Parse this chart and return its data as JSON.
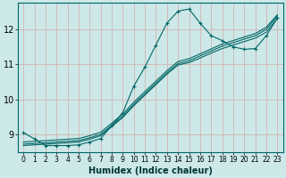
{
  "title": "",
  "xlabel": "Humidex (Indice chaleur)",
  "ylabel": "",
  "bg_color": "#cce8e8",
  "grid_color": "#b8d4d4",
  "line_color": "#006666",
  "xlim": [
    -0.5,
    23.5
  ],
  "ylim": [
    8.5,
    12.75
  ],
  "xticks": [
    0,
    1,
    2,
    3,
    4,
    5,
    6,
    7,
    8,
    9,
    10,
    11,
    12,
    13,
    14,
    15,
    16,
    17,
    18,
    19,
    20,
    21,
    22,
    23
  ],
  "yticks": [
    9,
    10,
    11,
    12
  ],
  "peaked": {
    "x": [
      0,
      1,
      2,
      3,
      4,
      5,
      6,
      7,
      8,
      9,
      10,
      11,
      12,
      13,
      14,
      15,
      16,
      17,
      18,
      19,
      20,
      21,
      22,
      23
    ],
    "y": [
      9.05,
      8.87,
      8.68,
      8.68,
      8.68,
      8.7,
      8.78,
      8.88,
      9.25,
      9.62,
      10.38,
      10.92,
      11.55,
      12.18,
      12.52,
      12.58,
      12.18,
      11.82,
      11.68,
      11.5,
      11.43,
      11.45,
      11.82,
      12.32
    ]
  },
  "linear1": {
    "x": [
      0,
      1,
      2,
      3,
      4,
      5,
      6,
      7,
      8,
      9,
      10,
      11,
      12,
      13,
      14,
      15,
      16,
      17,
      18,
      19,
      20,
      21,
      22,
      23
    ],
    "y": [
      8.68,
      8.7,
      8.72,
      8.74,
      8.76,
      8.78,
      8.86,
      8.96,
      9.22,
      9.48,
      9.82,
      10.12,
      10.42,
      10.72,
      10.98,
      11.05,
      11.18,
      11.32,
      11.45,
      11.55,
      11.65,
      11.75,
      11.92,
      12.32
    ]
  },
  "linear2": {
    "x": [
      0,
      1,
      2,
      3,
      4,
      5,
      6,
      7,
      8,
      9,
      10,
      11,
      12,
      13,
      14,
      15,
      16,
      17,
      18,
      19,
      20,
      21,
      22,
      23
    ],
    "y": [
      8.72,
      8.74,
      8.76,
      8.78,
      8.8,
      8.82,
      8.9,
      9.0,
      9.26,
      9.52,
      9.86,
      10.16,
      10.46,
      10.76,
      11.02,
      11.1,
      11.24,
      11.38,
      11.52,
      11.62,
      11.72,
      11.82,
      12.0,
      12.38
    ]
  },
  "linear3": {
    "x": [
      0,
      1,
      2,
      3,
      4,
      5,
      6,
      7,
      8,
      9,
      10,
      11,
      12,
      13,
      14,
      15,
      16,
      17,
      18,
      19,
      20,
      21,
      22,
      23
    ],
    "y": [
      8.78,
      8.8,
      8.82,
      8.84,
      8.86,
      8.88,
      8.96,
      9.06,
      9.32,
      9.58,
      9.92,
      10.22,
      10.52,
      10.82,
      11.08,
      11.16,
      11.3,
      11.44,
      11.58,
      11.68,
      11.78,
      11.88,
      12.06,
      12.42
    ]
  },
  "xlabel_fontsize": 7,
  "tick_fontsize": 5.5,
  "ytick_fontsize": 7
}
